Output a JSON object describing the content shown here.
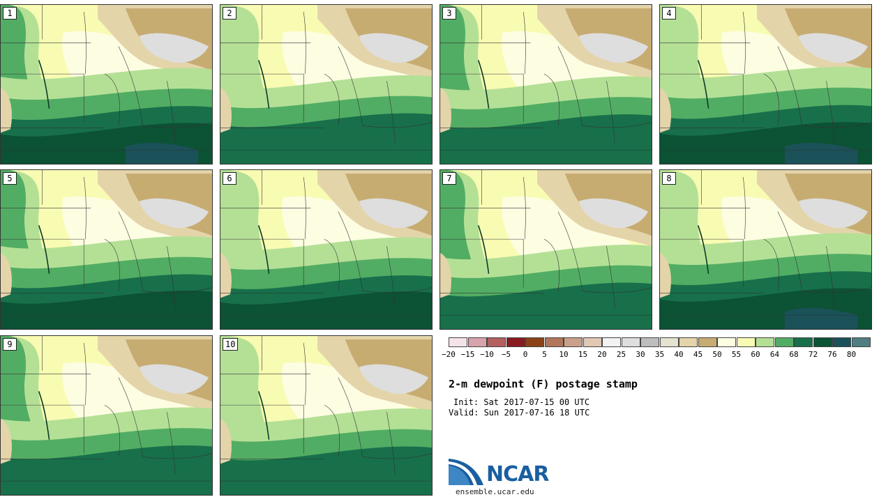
{
  "map": {
    "title": "2-m dewpoint (F) postage stamp",
    "init": "Init: Sat 2017-07-15 00 UTC",
    "valid": "Valid: Sun 2017-07-16 18 UTC",
    "members": [
      "1",
      "2",
      "3",
      "4",
      "5",
      "6",
      "7",
      "8",
      "9",
      "10"
    ]
  },
  "colorbar": {
    "ticks": [
      "−20",
      "−15",
      "−10",
      "−5",
      "0",
      "5",
      "10",
      "15",
      "20",
      "25",
      "30",
      "35",
      "40",
      "45",
      "50",
      "55",
      "60",
      "64",
      "68",
      "72",
      "76",
      "80"
    ],
    "colors": [
      "#f4e4ea",
      "#d8a4ac",
      "#b26060",
      "#8a1a22",
      "#8a4318",
      "#b0775c",
      "#c9a08a",
      "#e0c8b4",
      "#f2f2f2",
      "#dedede",
      "#bdbdbd",
      "#e5e3d0",
      "#e4d4aa",
      "#c7ac72",
      "#fdfde2",
      "#f8fbb2",
      "#b4e096",
      "#52ad64",
      "#17704a",
      "#0c5234",
      "#1b5158",
      "#507e82"
    ]
  },
  "logo": {
    "name": "NCAR",
    "url": "ensemble.ucar.edu",
    "colors": {
      "blue": "#1a5fa0",
      "light": "#7fb2dc"
    }
  }
}
